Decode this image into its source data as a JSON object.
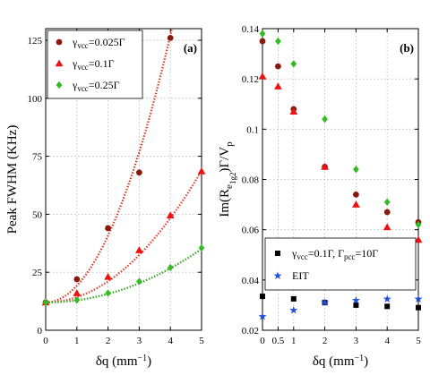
{
  "chart_data": [
    {
      "type": "scatter",
      "panel_label": "(a)",
      "ylabel": "Peak FWHM (KHz)",
      "xlabel": "δq (mm⁻¹)",
      "xlim": [
        0,
        5
      ],
      "ylim": [
        0,
        130
      ],
      "xticks": [
        0,
        1,
        2,
        3,
        4,
        5
      ],
      "yticks": [
        0,
        25,
        50,
        75,
        100,
        125
      ],
      "grid": true,
      "legend_position": "top-left",
      "series": [
        {
          "name": "γvcc=0.025Γ",
          "legend_base": "γ",
          "legend_sub": "vcc",
          "legend_tail": "=0.025Γ",
          "marker": "circle",
          "color": "#8b1a0e",
          "x": [
            0,
            1,
            2,
            3,
            4
          ],
          "y": [
            12,
            22,
            44,
            68,
            126
          ],
          "fit": {
            "color": "#d9381e",
            "coef": [
              12,
              0,
              7.2
            ]
          }
        },
        {
          "name": "γvcc=0.1Γ",
          "legend_base": "γ",
          "legend_sub": "vcc",
          "legend_tail": "=0.1Γ",
          "marker": "triangle",
          "color": "#ee1111",
          "x": [
            0,
            1,
            2,
            3,
            4,
            5
          ],
          "y": [
            12,
            16,
            23,
            34.5,
            49.5,
            68.5
          ],
          "fit": {
            "color": "#e0402a",
            "coef": [
              12,
              0,
              2.27
            ]
          }
        },
        {
          "name": "γvcc=0.25Γ",
          "legend_base": "γ",
          "legend_sub": "vcc",
          "legend_tail": "=0.25Γ",
          "marker": "diamond",
          "color": "#33bb22",
          "x": [
            0,
            1,
            2,
            3,
            4,
            5
          ],
          "y": [
            12,
            13,
            16,
            21,
            27,
            35.5
          ],
          "fit": {
            "color": "#2ea81a",
            "coef": [
              12,
              0,
              0.92
            ]
          }
        }
      ]
    },
    {
      "type": "scatter",
      "panel_label": "(b)",
      "ylabel": "Im(Re1g2)Γ/Vp",
      "ylabel_parts": [
        {
          "t": "Im(R",
          "sub": false
        },
        {
          "t": "e",
          "sub": true
        },
        {
          "t": "1g2",
          "subsub": true
        },
        {
          "t": ")Γ/V",
          "sub": false
        },
        {
          "t": "p",
          "sub": true
        }
      ],
      "xlabel": "δq (mm⁻¹)",
      "xlim": [
        0,
        5
      ],
      "ylim": [
        0.02,
        0.14
      ],
      "xticks": [
        0,
        0.5,
        1,
        2,
        3,
        4,
        5
      ],
      "xtick_labels": [
        "0",
        "0.5",
        "1",
        "2",
        "3",
        "4",
        "5"
      ],
      "yticks": [
        0.02,
        0.04,
        0.06,
        0.08,
        0.1,
        0.12,
        0.14
      ],
      "ytick_labels": [
        "0.02",
        "0.04",
        "0.06",
        "0.08",
        "0.1",
        "0.12",
        "0.14"
      ],
      "grid": true,
      "legend_position": "bottom",
      "series": [
        {
          "marker": "circle",
          "color": "#8b1a0e",
          "x": [
            0,
            0.5,
            1,
            2,
            3,
            4,
            5
          ],
          "y": [
            0.135,
            0.125,
            0.108,
            0.085,
            0.074,
            0.067,
            0.063
          ]
        },
        {
          "marker": "triangle",
          "color": "#ee1111",
          "x": [
            0,
            0.5,
            1,
            2,
            3,
            4,
            5
          ],
          "y": [
            0.121,
            0.117,
            0.107,
            0.085,
            0.07,
            0.061,
            0.056
          ]
        },
        {
          "marker": "diamond",
          "color": "#33bb22",
          "x": [
            0,
            0.5,
            1,
            2,
            3,
            4,
            5
          ],
          "y": [
            0.138,
            0.135,
            0.126,
            0.104,
            0.084,
            0.071,
            0.062
          ]
        },
        {
          "name": "γvcc=0.1Γ, Γpcc=10Γ",
          "legend_parts": [
            {
              "t": "γ",
              "sub": false
            },
            {
              "t": "vcc",
              "sub": true
            },
            {
              "t": "=0.1Γ, Γ",
              "sub": false
            },
            {
              "t": "pcc",
              "sub": true
            },
            {
              "t": "=10Γ",
              "sub": false
            }
          ],
          "marker": "square",
          "color": "#000000",
          "x": [
            0,
            1,
            2,
            3,
            4,
            5
          ],
          "y": [
            0.0335,
            0.0325,
            0.031,
            0.03,
            0.0295,
            0.029
          ]
        },
        {
          "name": "EIT",
          "legend_parts": [
            {
              "t": "EIT",
              "sub": false
            }
          ],
          "marker": "star",
          "color": "#1f4fe0",
          "x": [
            0,
            1,
            2,
            3,
            4,
            5
          ],
          "y": [
            0.0255,
            0.028,
            0.031,
            0.032,
            0.0325,
            0.0325
          ]
        }
      ]
    }
  ]
}
